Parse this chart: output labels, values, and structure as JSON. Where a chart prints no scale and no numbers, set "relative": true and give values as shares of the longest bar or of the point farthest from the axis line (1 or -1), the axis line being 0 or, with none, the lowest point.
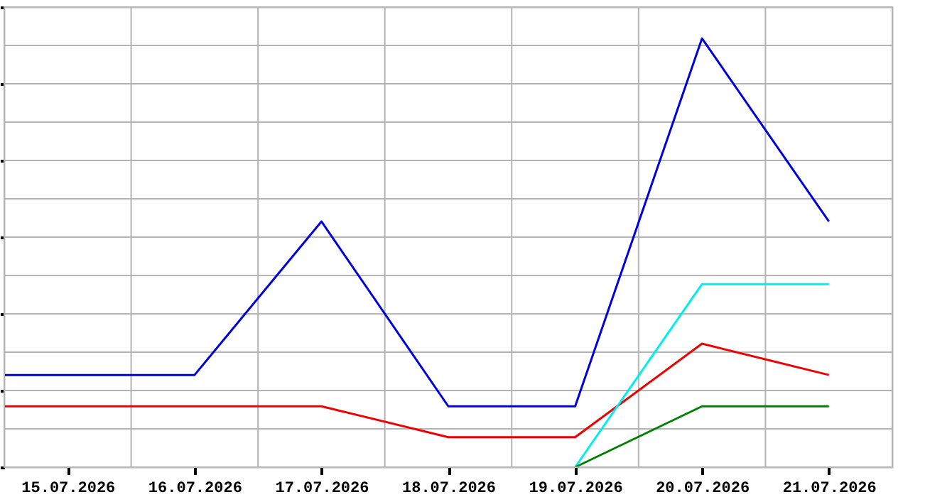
{
  "chart_data": {
    "type": "line",
    "relative": true,
    "grid": true,
    "marker": "none",
    "line_style": "solid",
    "xlim": [
      "2026-07-14T12:00",
      "2026-07-21T12:00"
    ],
    "xticks": [
      {
        "value": "2026-07-15",
        "label": "15.07.2026"
      },
      {
        "value": "2026-07-16",
        "label": "16.07.2026"
      },
      {
        "value": "2026-07-17",
        "label": "17.07.2026"
      },
      {
        "value": "2026-07-18",
        "label": "18.07.2026"
      },
      {
        "value": "2026-07-19",
        "label": "19.07.2026"
      },
      {
        "value": "2026-07-20",
        "label": "20.07.2026"
      },
      {
        "value": "2026-07-21",
        "label": "21.07.2026"
      }
    ],
    "tick_labels": "x",
    "series": [
      {
        "color": "#0000dd",
        "x": [
          "2026-07-14T12:00",
          "2026-07-15",
          "2026-07-16",
          "2026-07-17",
          "2026-07-18",
          "2026-07-19",
          "2026-07-20",
          "2026-07-21"
        ],
        "values": [
          0.215,
          0.215,
          0.215,
          0.573,
          0.142,
          0.142,
          1,
          0.573
        ]
      },
      {
        "color": "#ee0000",
        "x": [
          "2026-07-14T12:00",
          "2026-07-15",
          "2026-07-16",
          "2026-07-17",
          "2026-07-18",
          "2026-07-19",
          "2026-07-20",
          "2026-07-21"
        ],
        "values": [
          0.142,
          0.142,
          0.142,
          0.142,
          0.07,
          0.07,
          0.288,
          0.215
        ]
      },
      {
        "color": "#00eeee",
        "x": [
          "2026-07-19",
          "2026-07-20",
          "2026-07-21"
        ],
        "values": [
          0,
          0.427,
          0.427
        ]
      },
      {
        "color": "#008000",
        "x": [
          "2026-07-19",
          "2026-07-20",
          "2026-07-21"
        ],
        "values": [
          0,
          0.142,
          0.142
        ]
      }
    ]
  }
}
